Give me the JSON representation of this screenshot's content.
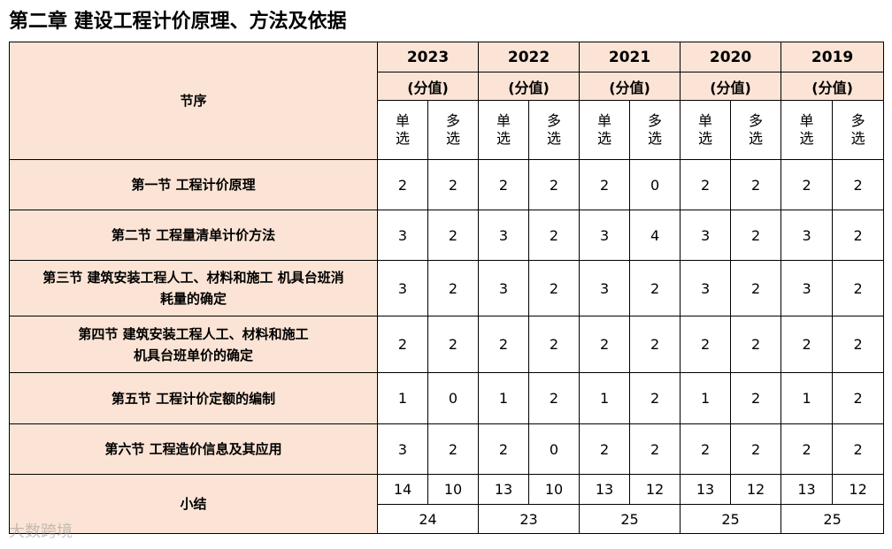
{
  "title": "第二章 建设工程计价原理、方法及依据",
  "header": {
    "column_label": "节序",
    "years": [
      "2023",
      "2022",
      "2021",
      "2020",
      "2019"
    ],
    "unit": "(分值)",
    "single": "单\n选",
    "multi": "多\n选"
  },
  "rows": [
    {
      "label": "第一节 工程计价原理",
      "values": [
        "2",
        "2",
        "2",
        "2",
        "2",
        "0",
        "2",
        "2",
        "2",
        "2"
      ]
    },
    {
      "label": "第二节 工程量清单计价方法",
      "values": [
        "3",
        "2",
        "3",
        "2",
        "3",
        "4",
        "3",
        "2",
        "3",
        "2"
      ]
    },
    {
      "label": "第三节 建筑安装工程人工、材料和施工 机具台班消\n耗量的确定",
      "values": [
        "3",
        "2",
        "3",
        "2",
        "3",
        "2",
        "3",
        "2",
        "3",
        "2"
      ]
    },
    {
      "label": "第四节 建筑安装工程人工、材料和施工\n机具台班单价的确定",
      "values": [
        "2",
        "2",
        "2",
        "2",
        "2",
        "2",
        "2",
        "2",
        "2",
        "2"
      ]
    },
    {
      "label": "第五节 工程计价定额的编制",
      "values": [
        "1",
        "0",
        "1",
        "2",
        "1",
        "2",
        "1",
        "2",
        "1",
        "2"
      ]
    },
    {
      "label": "第六节 工程造价信息及其应用",
      "values": [
        "3",
        "2",
        "2",
        "0",
        "2",
        "2",
        "2",
        "2",
        "2",
        "2"
      ]
    }
  ],
  "summary": {
    "label": "小结",
    "values": [
      "14",
      "10",
      "13",
      "10",
      "13",
      "12",
      "13",
      "12",
      "13",
      "12"
    ],
    "totals": [
      "24",
      "23",
      "25",
      "25",
      "25"
    ]
  },
  "watermark": "大数跨境"
}
